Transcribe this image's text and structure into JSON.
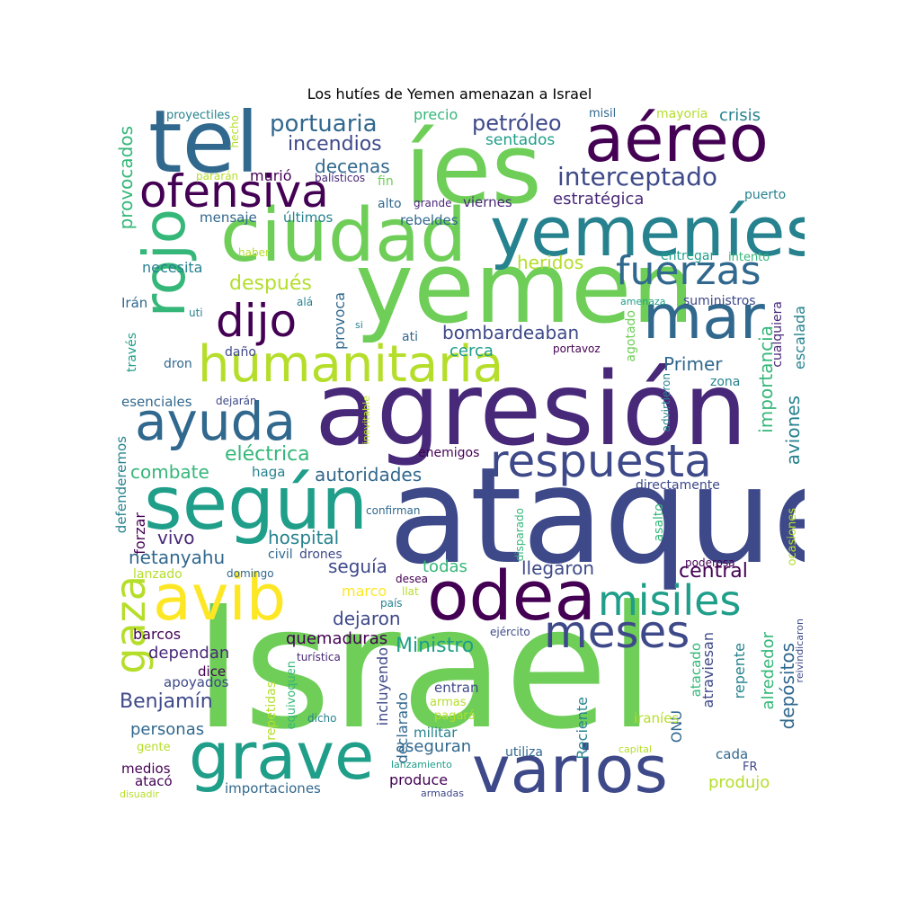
{
  "title": "Los hutíes de Yemen amenazan a Israel",
  "colors": [
    "#440154",
    "#482878",
    "#3e4989",
    "#31688e",
    "#26828e",
    "#1f9e89",
    "#35b779",
    "#6ece58",
    "#b5de2b",
    "#fde725"
  ],
  "words": [
    {
      "text": "ataque",
      "c": "#3e4989"
    },
    {
      "text": "Israel",
      "c": "#6ece58"
    },
    {
      "text": "agresión",
      "c": "#482878"
    },
    {
      "text": "yemen",
      "c": "#6ece58"
    },
    {
      "text": "íes",
      "c": "#6ece58"
    },
    {
      "text": "ciudad",
      "c": "#6ece58"
    },
    {
      "text": "yemeníes",
      "c": "#26828e"
    },
    {
      "text": "tel",
      "c": "#31688e"
    },
    {
      "text": "aéreo",
      "c": "#440154"
    },
    {
      "text": "ofensiva",
      "c": "#440154"
    },
    {
      "text": "humanitaria",
      "c": "#b5de2b"
    },
    {
      "text": "según",
      "c": "#1f9e89"
    },
    {
      "text": "avib",
      "c": "#fde725"
    },
    {
      "text": "odea",
      "c": "#440154"
    },
    {
      "text": "grave",
      "c": "#1f9e89"
    },
    {
      "text": "varios",
      "c": "#3e4989"
    },
    {
      "text": "mar",
      "c": "#31688e"
    },
    {
      "text": "rojo",
      "c": "#35b779"
    },
    {
      "text": "gaza",
      "c": "#b5de2b"
    },
    {
      "text": "ayuda",
      "c": "#31688e"
    },
    {
      "text": "dijo",
      "c": "#440154"
    },
    {
      "text": "respuesta",
      "c": "#3e4989"
    },
    {
      "text": "misiles",
      "c": "#1f9e89"
    },
    {
      "text": "meses",
      "c": "#3e4989"
    },
    {
      "text": "fuerzas",
      "c": "#31688e"
    },
    {
      "text": "interceptado",
      "c": "#3e4989"
    },
    {
      "text": "portuaria",
      "c": "#31688e"
    },
    {
      "text": "incendios",
      "c": "#3e4989"
    },
    {
      "text": "petróleo",
      "c": "#3e4989"
    },
    {
      "text": "decenas",
      "c": "#31688e"
    },
    {
      "text": "sentados",
      "c": "#1f9e89"
    },
    {
      "text": "estratégica",
      "c": "#482878"
    },
    {
      "text": "crisis",
      "c": "#26828e"
    },
    {
      "text": "precio",
      "c": "#35b779"
    },
    {
      "text": "mayoría",
      "c": "#b5de2b"
    },
    {
      "text": "misil",
      "c": "#31688e"
    },
    {
      "text": "proyectiles",
      "c": "#26828e"
    },
    {
      "text": "hecho",
      "c": "#b5de2b"
    },
    {
      "text": "provocados",
      "c": "#35b779"
    },
    {
      "text": "murió",
      "c": "#440154"
    },
    {
      "text": "balísticos",
      "c": "#482878"
    },
    {
      "text": "pararán",
      "c": "#b5de2b"
    },
    {
      "text": "fin",
      "c": "#6ece58"
    },
    {
      "text": "alto",
      "c": "#31688e"
    },
    {
      "text": "grande",
      "c": "#482878"
    },
    {
      "text": "viernes",
      "c": "#482878"
    },
    {
      "text": "puerto",
      "c": "#26828e"
    },
    {
      "text": "mensaje",
      "c": "#31688e"
    },
    {
      "text": "últimos",
      "c": "#26828e"
    },
    {
      "text": "rebeldes",
      "c": "#31688e"
    },
    {
      "text": "haber",
      "c": "#b5de2b"
    },
    {
      "text": "heridos",
      "c": "#b5de2b"
    },
    {
      "text": "entregar",
      "c": "#1f9e89"
    },
    {
      "text": "intento",
      "c": "#35b779"
    },
    {
      "text": "necesita",
      "c": "#26828e"
    },
    {
      "text": "después",
      "c": "#b5de2b"
    },
    {
      "text": "suministros",
      "c": "#3e4989"
    },
    {
      "text": "amenaza",
      "c": "#1f9e89"
    },
    {
      "text": "Irán",
      "c": "#31688e"
    },
    {
      "text": "uti",
      "c": "#26828e"
    },
    {
      "text": "alá",
      "c": "#26828e"
    },
    {
      "text": "provoca",
      "c": "#31688e"
    },
    {
      "text": "si",
      "c": "#26828e"
    },
    {
      "text": "bombardeaban",
      "c": "#3e4989"
    },
    {
      "text": "agotado",
      "c": "#6ece58"
    },
    {
      "text": "cualquiera",
      "c": "#482878"
    },
    {
      "text": "ati",
      "c": "#31688e"
    },
    {
      "text": "cerca",
      "c": "#1f9e89"
    },
    {
      "text": "portavoz",
      "c": "#440154"
    },
    {
      "text": "escalada",
      "c": "#26828e"
    },
    {
      "text": "daño",
      "c": "#3e4989"
    },
    {
      "text": "través",
      "c": "#1f9e89"
    },
    {
      "text": "dron",
      "c": "#31688e"
    },
    {
      "text": "Primer",
      "c": "#31688e"
    },
    {
      "text": "zona",
      "c": "#26828e"
    },
    {
      "text": "esenciales",
      "c": "#31688e"
    },
    {
      "text": "dejarán",
      "c": "#3e4989"
    },
    {
      "text": "inevitable",
      "c": "#b5de2b"
    },
    {
      "text": "advirtieron",
      "c": "#26828e"
    },
    {
      "text": "importancia",
      "c": "#35b779"
    },
    {
      "text": "aviones",
      "c": "#26828e"
    },
    {
      "text": "eléctrica",
      "c": "#35b779"
    },
    {
      "text": "enemigos",
      "c": "#440154"
    },
    {
      "text": "combate",
      "c": "#35b779"
    },
    {
      "text": "haga",
      "c": "#26828e"
    },
    {
      "text": "autoridades",
      "c": "#31688e"
    },
    {
      "text": "directamente",
      "c": "#3e4989"
    },
    {
      "text": "defenderemos",
      "c": "#26828e"
    },
    {
      "text": "forzar",
      "c": "#440154"
    },
    {
      "text": "confirman",
      "c": "#31688e"
    },
    {
      "text": "disparado",
      "c": "#35b779"
    },
    {
      "text": "asalto",
      "c": "#35b779"
    },
    {
      "text": "ocasiones",
      "c": "#b5de2b"
    },
    {
      "text": "poderosa",
      "c": "#440154"
    },
    {
      "text": "vivo",
      "c": "#482878"
    },
    {
      "text": "hospital",
      "c": "#26828e"
    },
    {
      "text": "netanyahu",
      "c": "#31688e"
    },
    {
      "text": "civil",
      "c": "#31688e"
    },
    {
      "text": "drones",
      "c": "#3e4989"
    },
    {
      "text": "seguía",
      "c": "#3e4989"
    },
    {
      "text": "todas",
      "c": "#35b779"
    },
    {
      "text": "llegaron",
      "c": "#3e4989"
    },
    {
      "text": "central",
      "c": "#440154"
    },
    {
      "text": "lanzado",
      "c": "#b5de2b"
    },
    {
      "text": "domingo",
      "c": "#31688e"
    },
    {
      "text": "desea",
      "c": "#440154"
    },
    {
      "text": "marco",
      "c": "#fde725"
    },
    {
      "text": "llat",
      "c": "#b5de2b"
    },
    {
      "text": "país",
      "c": "#26828e"
    },
    {
      "text": "dejaron",
      "c": "#3e4989"
    },
    {
      "text": "barcos",
      "c": "#440154"
    },
    {
      "text": "quemaduras",
      "c": "#440154"
    },
    {
      "text": "ejército",
      "c": "#3e4989"
    },
    {
      "text": "Ministro",
      "c": "#1f9e89"
    },
    {
      "text": "dependan",
      "c": "#482878"
    },
    {
      "text": "turística",
      "c": "#482878"
    },
    {
      "text": "dice",
      "c": "#440154"
    },
    {
      "text": "apoyados",
      "c": "#3e4989"
    },
    {
      "text": "equivoquen",
      "c": "#35b779"
    },
    {
      "text": "repetidas",
      "c": "#b5de2b"
    },
    {
      "text": "incluyendo",
      "c": "#3e4989"
    },
    {
      "text": "entran",
      "c": "#3e4989"
    },
    {
      "text": "declarado",
      "c": "#31688e"
    },
    {
      "text": "armas",
      "c": "#b5de2b"
    },
    {
      "text": "Benjamín",
      "c": "#3e4989"
    },
    {
      "text": "personas",
      "c": "#31688e"
    },
    {
      "text": "dicho",
      "c": "#26828e"
    },
    {
      "text": "pagará",
      "c": "#b5de2b"
    },
    {
      "text": "militar",
      "c": "#26828e"
    },
    {
      "text": "gente",
      "c": "#b5de2b"
    },
    {
      "text": "aseguran",
      "c": "#31688e"
    },
    {
      "text": "utiliza",
      "c": "#31688e"
    },
    {
      "text": "Reciente",
      "c": "#26828e"
    },
    {
      "text": "capital",
      "c": "#b5de2b"
    },
    {
      "text": "ONU",
      "c": "#31688e"
    },
    {
      "text": "cada",
      "c": "#31688e"
    },
    {
      "text": "FR",
      "c": "#3e4989"
    },
    {
      "text": "medios",
      "c": "#440154"
    },
    {
      "text": "atacó",
      "c": "#440154"
    },
    {
      "text": "lanzamiento",
      "c": "#1f9e89"
    },
    {
      "text": "produce",
      "c": "#440154"
    },
    {
      "text": "armadas",
      "c": "#3e4989"
    },
    {
      "text": "produjo",
      "c": "#b5de2b"
    },
    {
      "text": "disuadir",
      "c": "#b5de2b"
    },
    {
      "text": "importaciones",
      "c": "#31688e"
    },
    {
      "text": "atacado",
      "c": "#35b779"
    },
    {
      "text": "atraviesan",
      "c": "#3e4989"
    },
    {
      "text": "repente",
      "c": "#26828e"
    },
    {
      "text": "alrededor",
      "c": "#35b779"
    },
    {
      "text": "depósitos",
      "c": "#31688e"
    },
    {
      "text": "reivindicaron",
      "c": "#3e4989"
    },
    {
      "text": "iraníes",
      "c": "#b5de2b"
    }
  ]
}
